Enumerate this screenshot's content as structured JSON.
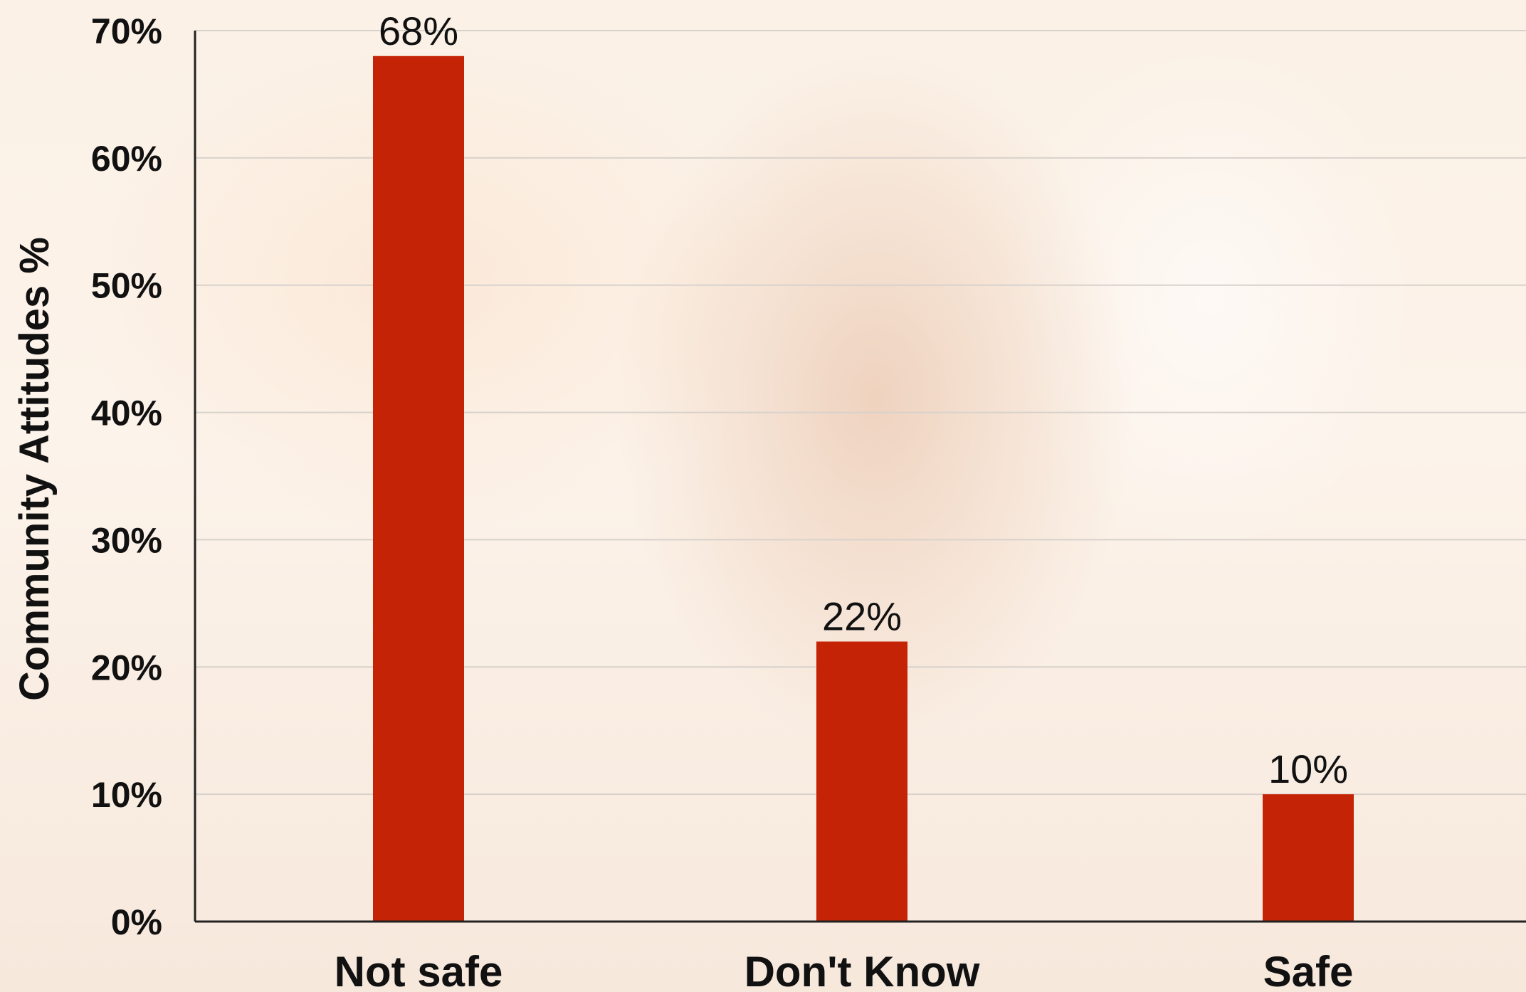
{
  "chart_data": {
    "type": "bar",
    "categories": [
      "Not safe",
      "Don't Know",
      "Safe"
    ],
    "values": [
      68,
      22,
      10
    ],
    "data_labels": [
      "68%",
      "22%",
      "10%"
    ],
    "title": "",
    "xlabel": "",
    "ylabel": "Community Attitudes %",
    "ylim": [
      0,
      70
    ],
    "yticks": [
      0,
      10,
      20,
      30,
      40,
      50,
      60,
      70
    ],
    "ytick_labels": [
      "0%",
      "10%",
      "20%",
      "30%",
      "40%",
      "50%",
      "60%",
      "70%"
    ],
    "grid": true,
    "bar_color": "#c52306"
  }
}
